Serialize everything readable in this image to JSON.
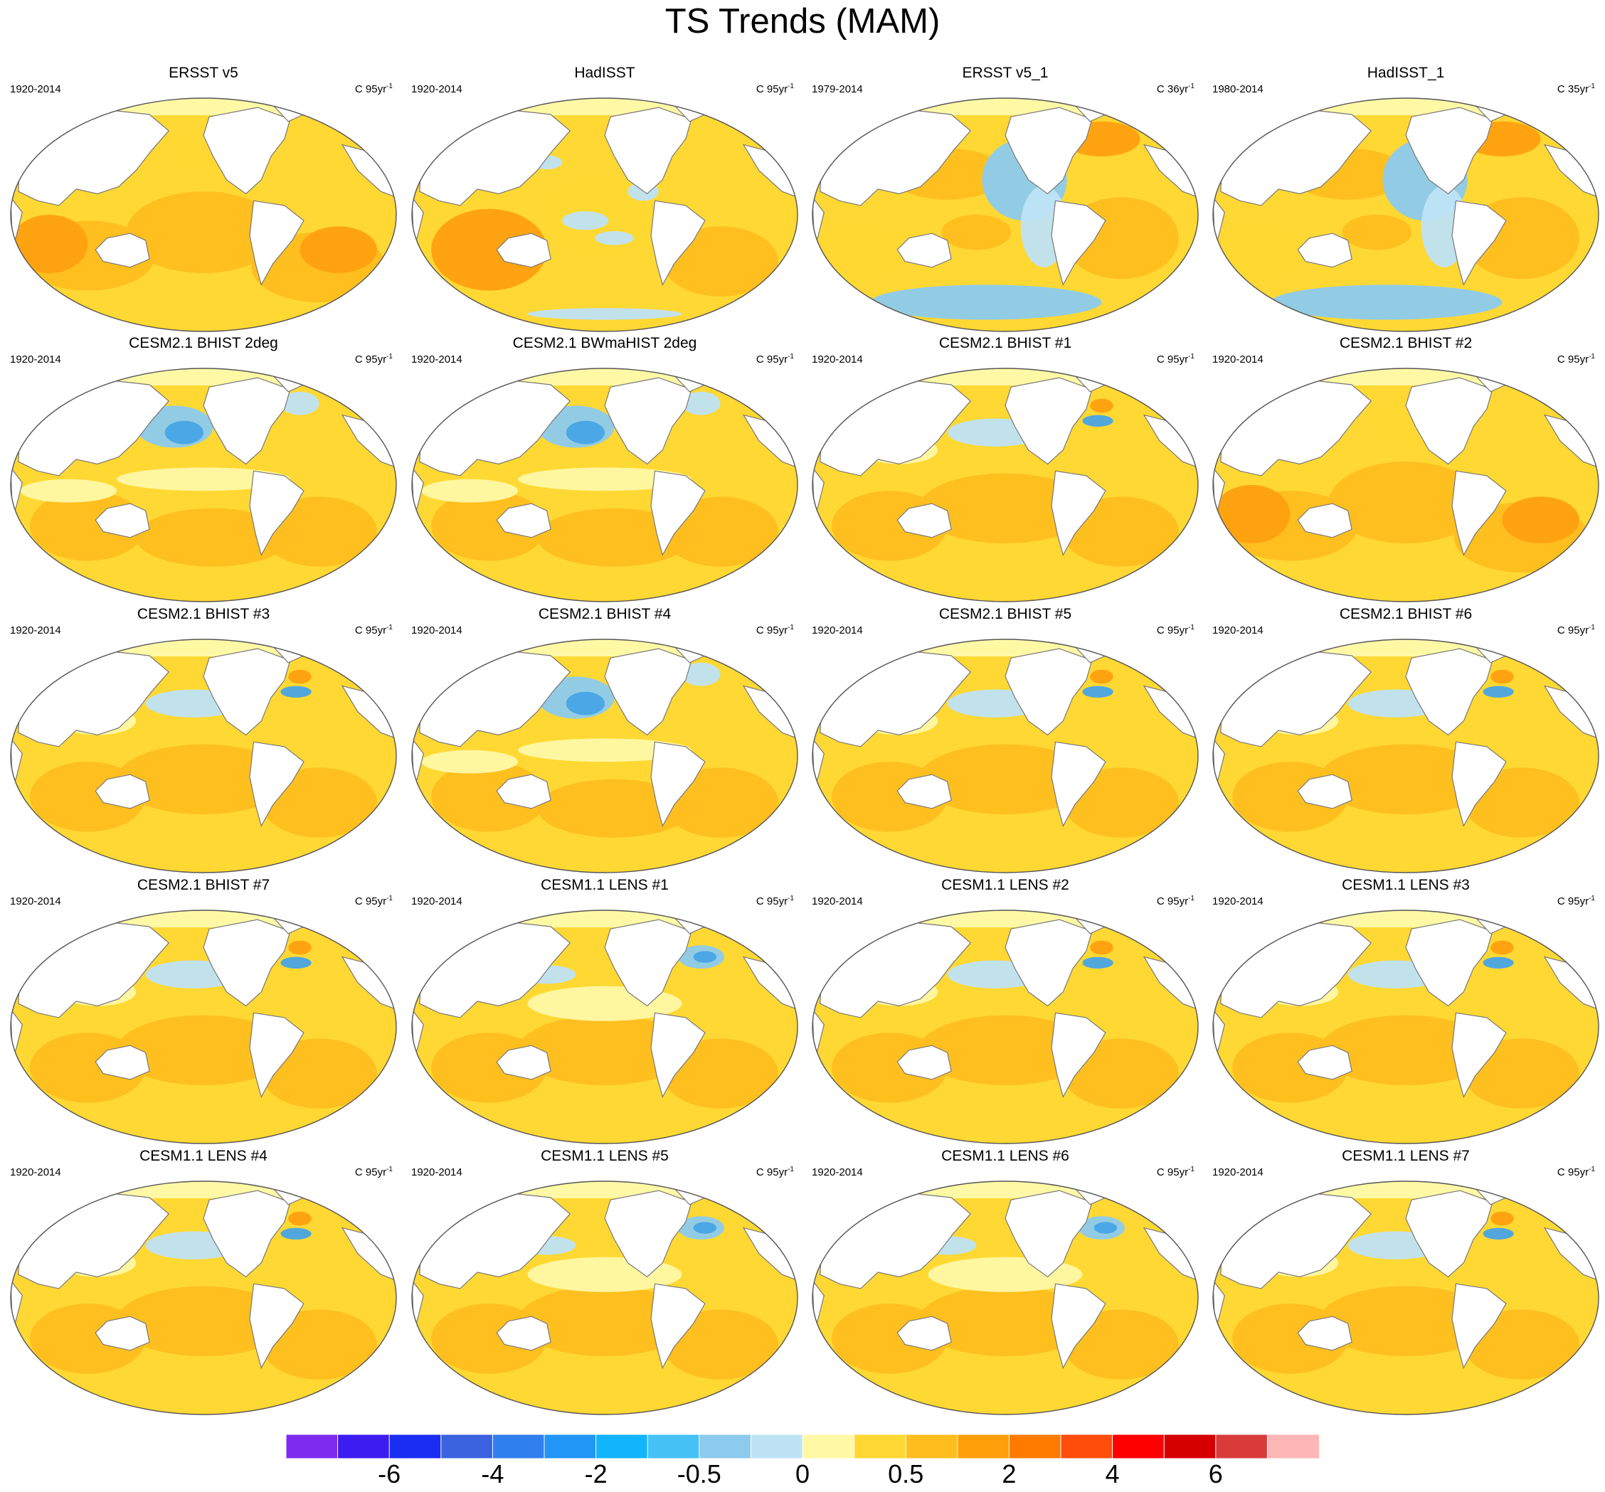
{
  "title": "TS Trends (MAM)",
  "colors": {
    "land": "#ffffff",
    "coast": "#777777",
    "warm_base": "#ffd833",
    "warm_mid": "#ffbe1e",
    "warm_strong": "#ffa010",
    "cool_light": "#bfe3f5",
    "cool_mid": "#8ccbee",
    "cool_strong": "#48a4e6",
    "neutral": "#fff9a6"
  },
  "panels": [
    {
      "title": "ERSST v5",
      "period": "1920-2014",
      "units": "C 95yr",
      "pattern": "uniform_warm"
    },
    {
      "title": "HadISST",
      "period": "1920-2014",
      "units": "C 95yr",
      "pattern": "patchy_warm"
    },
    {
      "title": "ERSST v5_1",
      "period": "1979-2014",
      "units": "C 36yr",
      "pattern": "la_nina_cool"
    },
    {
      "title": "HadISST_1",
      "period": "1980-2014",
      "units": "C 35yr",
      "pattern": "la_nina_cool"
    },
    {
      "title": "CESM2.1 BHIST 2deg",
      "period": "1920-2014",
      "units": "C 95yr",
      "pattern": "npac_cool"
    },
    {
      "title": "CESM2.1 BWmaHIST 2deg",
      "period": "1920-2014",
      "units": "C 95yr",
      "pattern": "npac_cool"
    },
    {
      "title": "CESM2.1 BHIST #1",
      "period": "1920-2014",
      "units": "C 95yr",
      "pattern": "mild_cool"
    },
    {
      "title": "CESM2.1 BHIST #2",
      "period": "1920-2014",
      "units": "C 95yr",
      "pattern": "uniform_warm"
    },
    {
      "title": "CESM2.1 BHIST #3",
      "period": "1920-2014",
      "units": "C 95yr",
      "pattern": "mild_cool"
    },
    {
      "title": "CESM2.1 BHIST #4",
      "period": "1920-2014",
      "units": "C 95yr",
      "pattern": "npac_cool"
    },
    {
      "title": "CESM2.1 BHIST #5",
      "period": "1920-2014",
      "units": "C 95yr",
      "pattern": "mild_cool"
    },
    {
      "title": "CESM2.1 BHIST #6",
      "period": "1920-2014",
      "units": "C 95yr",
      "pattern": "mild_cool"
    },
    {
      "title": "CESM2.1 BHIST #7",
      "period": "1920-2014",
      "units": "C 95yr",
      "pattern": "mild_cool"
    },
    {
      "title": "CESM1.1 LENS #1",
      "period": "1920-2014",
      "units": "C 95yr",
      "pattern": "natl_cool"
    },
    {
      "title": "CESM1.1 LENS #2",
      "period": "1920-2014",
      "units": "C 95yr",
      "pattern": "mild_cool"
    },
    {
      "title": "CESM1.1 LENS #3",
      "period": "1920-2014",
      "units": "C 95yr",
      "pattern": "mild_cool"
    },
    {
      "title": "CESM1.1 LENS #4",
      "period": "1920-2014",
      "units": "C 95yr",
      "pattern": "mild_cool"
    },
    {
      "title": "CESM1.1 LENS #5",
      "period": "1920-2014",
      "units": "C 95yr",
      "pattern": "natl_cool"
    },
    {
      "title": "CESM1.1 LENS #6",
      "period": "1920-2014",
      "units": "C 95yr",
      "pattern": "natl_cool"
    },
    {
      "title": "CESM1.1 LENS #7",
      "period": "1920-2014",
      "units": "C 95yr",
      "pattern": "mild_cool"
    }
  ],
  "units_exponent": "-1",
  "colorbar": {
    "colors": [
      "#7f2bef",
      "#3d1cf2",
      "#1a2df2",
      "#3b63e0",
      "#2f7fee",
      "#2196f6",
      "#12b4fb",
      "#46c2f7",
      "#8ccbee",
      "#bfe3f5",
      "#fff9a6",
      "#ffd833",
      "#ffbe1e",
      "#ff9f0a",
      "#ff7b00",
      "#ff4d0c",
      "#ff0000",
      "#d60000",
      "#d93b3b",
      "#ffb6b6"
    ],
    "labels": [
      "-6",
      "-4",
      "-2",
      "-0.5",
      "0",
      "0.5",
      "2",
      "4",
      "6"
    ]
  }
}
